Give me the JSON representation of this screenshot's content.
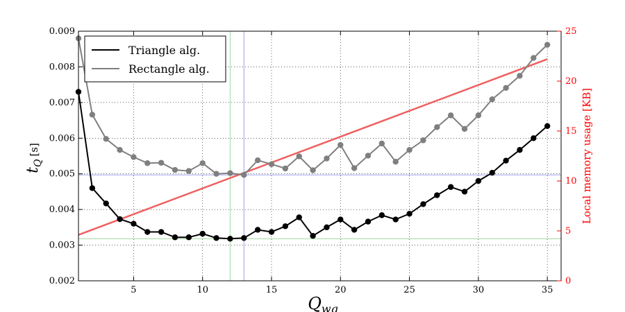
{
  "chart_data": {
    "type": "line",
    "xlabel_base": "Q",
    "xlabel_sub": "wg",
    "ylabel_base": "t",
    "ylabel_sub": "Q",
    "ylabel_unit": "[s]",
    "y2label": "Local memory usage [KB]",
    "xlim": [
      1,
      36
    ],
    "ylim": [
      0.002,
      0.009
    ],
    "y2lim": [
      0,
      25
    ],
    "xticks": [
      5,
      10,
      15,
      20,
      25,
      30,
      35
    ],
    "yticks": [
      "0.002",
      "0.003",
      "0.004",
      "0.005",
      "0.006",
      "0.007",
      "0.008",
      "0.009"
    ],
    "y2ticks": [
      0,
      5,
      10,
      15,
      20,
      25
    ],
    "grid": true,
    "legend_position": "top-left",
    "x": [
      1,
      2,
      3,
      4,
      5,
      6,
      7,
      8,
      9,
      10,
      11,
      12,
      13,
      14,
      15,
      16,
      17,
      18,
      19,
      20,
      21,
      22,
      23,
      24,
      25,
      26,
      27,
      28,
      29,
      30,
      31,
      32,
      33,
      34,
      35
    ],
    "series": [
      {
        "name": "Triangle alg.",
        "color": "#000000",
        "axis": "left",
        "values": [
          0.0073,
          0.0046,
          0.00417,
          0.00373,
          0.0036,
          0.00337,
          0.00337,
          0.00322,
          0.00322,
          0.00332,
          0.0032,
          0.00318,
          0.0032,
          0.00343,
          0.00337,
          0.00353,
          0.00378,
          0.00326,
          0.0035,
          0.00372,
          0.00343,
          0.00366,
          0.00384,
          0.00372,
          0.00388,
          0.00415,
          0.0044,
          0.00463,
          0.0045,
          0.0048,
          0.00503,
          0.00537,
          0.00567,
          0.006,
          0.00634
        ]
      },
      {
        "name": "Rectangle alg.",
        "color": "#7f7f7f",
        "axis": "left",
        "values": [
          0.0088,
          0.00666,
          0.00598,
          0.00567,
          0.00547,
          0.0053,
          0.00531,
          0.00511,
          0.00508,
          0.0053,
          0.005,
          0.00502,
          0.00497,
          0.00538,
          0.00527,
          0.00515,
          0.00549,
          0.0051,
          0.00543,
          0.00581,
          0.00516,
          0.00551,
          0.00585,
          0.00534,
          0.00567,
          0.00594,
          0.00631,
          0.00664,
          0.00626,
          0.00664,
          0.00709,
          0.00741,
          0.00775,
          0.00825,
          0.00862
        ]
      },
      {
        "name": "",
        "color": "#f06060",
        "axis": "right",
        "x": [
          1,
          35
        ],
        "values": [
          4.6,
          22.2
        ]
      }
    ],
    "reference_lines": [
      {
        "orientation": "vertical",
        "x": 12,
        "color": "#a0d8a0"
      },
      {
        "orientation": "horizontal",
        "y": 0.00318,
        "color": "#a0d8a0"
      },
      {
        "orientation": "vertical",
        "x": 13,
        "color": "#a0a0f0"
      },
      {
        "orientation": "horizontal",
        "y": 0.00497,
        "color": "#a0a0f0"
      }
    ]
  }
}
